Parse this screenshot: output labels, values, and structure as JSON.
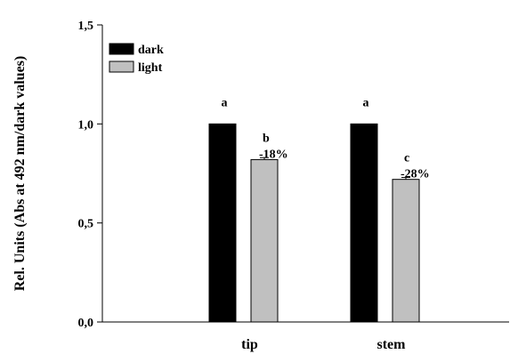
{
  "chart_data": {
    "type": "bar",
    "categories": [
      "tip",
      "stem"
    ],
    "series": [
      {
        "name": "dark",
        "values": [
          1.0,
          1.0
        ],
        "errors": [
          0,
          0
        ],
        "color": "#000000",
        "letters": [
          "a",
          "a"
        ],
        "changes": [
          "",
          ""
        ]
      },
      {
        "name": "light",
        "values": [
          0.82,
          0.72
        ],
        "errors": [
          0.01,
          0.01
        ],
        "color": "#c0c0c0",
        "letters": [
          "b",
          "c"
        ],
        "changes": [
          "-18%",
          "-28%"
        ]
      }
    ],
    "ylabel": "Rel. Units (Abs at 492 nm/dark values)",
    "xlabel": "",
    "ylim": [
      0.0,
      1.5
    ],
    "yticks": [
      "0,0",
      "0,5",
      "1,0",
      "1,5"
    ],
    "ytick_values": [
      0.0,
      0.5,
      1.0,
      1.5
    ],
    "legend": {
      "position": "top-left",
      "entries": [
        "dark",
        "light"
      ]
    },
    "grid": false
  }
}
